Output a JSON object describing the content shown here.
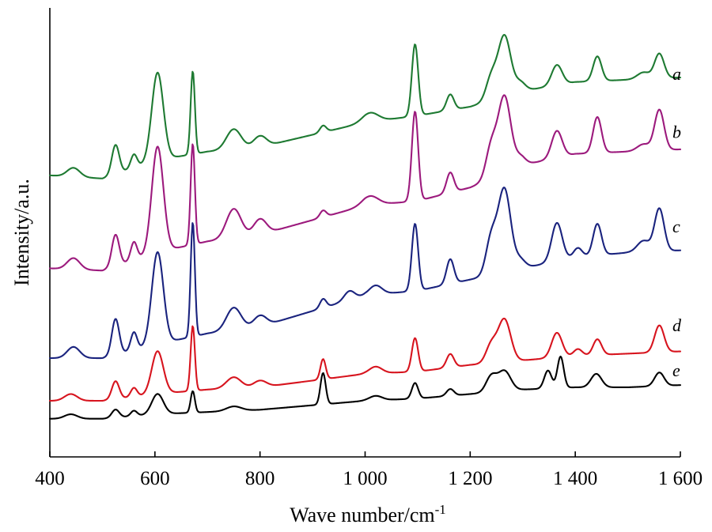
{
  "chart_data": {
    "type": "line",
    "title": "",
    "xlabel": "Wave number/cm",
    "xlabel_sup": "-1",
    "ylabel": "Intensity/a.u.",
    "xlim": [
      400,
      1600
    ],
    "ylim": [
      0,
      100
    ],
    "x_ticks": [
      400,
      600,
      800,
      1000,
      1200,
      1400,
      1600
    ],
    "x_tick_labels": [
      "400",
      "600",
      "800",
      "1 000",
      "1 200",
      "1 400",
      "1 600"
    ],
    "y_ticks_shown": false,
    "grid": false,
    "legend": "none",
    "series": [
      {
        "name": "a",
        "color": "#1e7a32",
        "baseline": [
          [
            400,
            62.7
          ],
          [
            500,
            62.0
          ],
          [
            600,
            66.0
          ],
          [
            700,
            68.0
          ],
          [
            800,
            69.0
          ],
          [
            1000,
            74.5
          ],
          [
            1100,
            76.0
          ],
          [
            1200,
            78.0
          ],
          [
            1300,
            81.5
          ],
          [
            1400,
            83.5
          ],
          [
            1500,
            84.0
          ],
          [
            1600,
            84.5
          ]
        ],
        "peaks": [
          [
            445,
            2.0,
            12
          ],
          [
            525,
            6.5,
            7
          ],
          [
            560,
            3.0,
            6
          ],
          [
            605,
            19.5,
            11
          ],
          [
            672,
            18.5,
            4
          ],
          [
            750,
            4.5,
            14
          ],
          [
            800,
            2.5,
            12
          ],
          [
            920,
            1.5,
            6
          ],
          [
            1010,
            2.0,
            15
          ],
          [
            1095,
            16.0,
            6
          ],
          [
            1162,
            3.5,
            7
          ],
          [
            1240,
            5.0,
            10
          ],
          [
            1265,
            13.5,
            12
          ],
          [
            1295,
            2.0,
            10
          ],
          [
            1365,
            4.5,
            10
          ],
          [
            1442,
            5.5,
            8
          ],
          [
            1530,
            1.5,
            12
          ],
          [
            1560,
            5.5,
            9
          ]
        ]
      },
      {
        "name": "b",
        "color": "#9c1a7d",
        "baseline": [
          [
            400,
            42.0
          ],
          [
            500,
            41.5
          ],
          [
            600,
            45.5
          ],
          [
            700,
            48.0
          ],
          [
            800,
            49.5
          ],
          [
            1000,
            56.0
          ],
          [
            1100,
            57.0
          ],
          [
            1200,
            60.0
          ],
          [
            1300,
            65.0
          ],
          [
            1400,
            67.5
          ],
          [
            1500,
            68.0
          ],
          [
            1600,
            68.5
          ]
        ],
        "peaks": [
          [
            445,
            2.5,
            12
          ],
          [
            525,
            7.0,
            7
          ],
          [
            560,
            4.0,
            6
          ],
          [
            605,
            23.5,
            11
          ],
          [
            672,
            22.5,
            4
          ],
          [
            750,
            6.5,
            14
          ],
          [
            800,
            3.5,
            12
          ],
          [
            920,
            1.5,
            6
          ],
          [
            1010,
            2.0,
            15
          ],
          [
            1095,
            20.0,
            6
          ],
          [
            1162,
            4.5,
            7
          ],
          [
            1240,
            7.0,
            10
          ],
          [
            1265,
            17.0,
            12
          ],
          [
            1295,
            2.0,
            10
          ],
          [
            1365,
            6.0,
            10
          ],
          [
            1442,
            8.0,
            8
          ],
          [
            1530,
            1.5,
            12
          ],
          [
            1560,
            9.0,
            9
          ]
        ]
      },
      {
        "name": "c",
        "color": "#1a237e",
        "baseline": [
          [
            400,
            22.0
          ],
          [
            500,
            22.0
          ],
          [
            600,
            25.0
          ],
          [
            700,
            27.5
          ],
          [
            800,
            29.0
          ],
          [
            1000,
            36.0
          ],
          [
            1100,
            37.0
          ],
          [
            1200,
            39.5
          ],
          [
            1300,
            42.0
          ],
          [
            1400,
            44.5
          ],
          [
            1500,
            45.5
          ],
          [
            1600,
            46.0
          ]
        ],
        "peaks": [
          [
            445,
            2.5,
            12
          ],
          [
            525,
            8.0,
            7
          ],
          [
            560,
            4.0,
            6
          ],
          [
            605,
            20.5,
            11
          ],
          [
            672,
            25.5,
            4
          ],
          [
            750,
            5.0,
            14
          ],
          [
            800,
            2.5,
            12
          ],
          [
            920,
            2.0,
            6
          ],
          [
            970,
            2.0,
            10
          ],
          [
            1020,
            2.0,
            12
          ],
          [
            1095,
            15.0,
            6
          ],
          [
            1162,
            5.5,
            7
          ],
          [
            1240,
            8.0,
            10
          ],
          [
            1265,
            18.5,
            12
          ],
          [
            1295,
            2.0,
            10
          ],
          [
            1365,
            8.5,
            10
          ],
          [
            1405,
            2.0,
            8
          ],
          [
            1442,
            7.0,
            8
          ],
          [
            1530,
            2.5,
            12
          ],
          [
            1560,
            9.5,
            9
          ]
        ]
      },
      {
        "name": "d",
        "color": "#d7141e",
        "baseline": [
          [
            400,
            12.5
          ],
          [
            500,
            12.5
          ],
          [
            600,
            14.0
          ],
          [
            700,
            15.0
          ],
          [
            800,
            15.5
          ],
          [
            1000,
            18.5
          ],
          [
            1100,
            19.0
          ],
          [
            1200,
            20.5
          ],
          [
            1300,
            21.5
          ],
          [
            1400,
            22.5
          ],
          [
            1500,
            23.0
          ],
          [
            1600,
            23.5
          ]
        ],
        "peaks": [
          [
            440,
            1.5,
            12
          ],
          [
            525,
            4.0,
            7
          ],
          [
            560,
            2.0,
            6
          ],
          [
            605,
            9.5,
            11
          ],
          [
            672,
            14.5,
            4
          ],
          [
            750,
            2.5,
            14
          ],
          [
            800,
            1.5,
            12
          ],
          [
            920,
            4.5,
            5
          ],
          [
            1020,
            1.5,
            12
          ],
          [
            1095,
            7.5,
            6
          ],
          [
            1162,
            3.0,
            7
          ],
          [
            1240,
            4.0,
            10
          ],
          [
            1265,
            9.5,
            12
          ],
          [
            1365,
            5.5,
            10
          ],
          [
            1405,
            1.5,
            8
          ],
          [
            1442,
            3.5,
            8
          ],
          [
            1560,
            6.0,
            9
          ]
        ]
      },
      {
        "name": "e",
        "color": "#000000",
        "baseline": [
          [
            400,
            8.5
          ],
          [
            500,
            8.5
          ],
          [
            600,
            9.5
          ],
          [
            700,
            10.0
          ],
          [
            800,
            10.5
          ],
          [
            1000,
            12.5
          ],
          [
            1100,
            13.0
          ],
          [
            1200,
            14.0
          ],
          [
            1300,
            15.0
          ],
          [
            1400,
            15.5
          ],
          [
            1500,
            15.5
          ],
          [
            1600,
            16.0
          ]
        ],
        "peaks": [
          [
            440,
            1.0,
            12
          ],
          [
            525,
            1.8,
            7
          ],
          [
            560,
            1.2,
            6
          ],
          [
            605,
            4.5,
            11
          ],
          [
            672,
            4.8,
            4
          ],
          [
            750,
            1.0,
            14
          ],
          [
            920,
            7.0,
            5
          ],
          [
            1020,
            1.0,
            12
          ],
          [
            1095,
            3.5,
            6
          ],
          [
            1162,
            1.5,
            7
          ],
          [
            1240,
            3.5,
            10
          ],
          [
            1265,
            4.5,
            12
          ],
          [
            1348,
            4.0,
            7
          ],
          [
            1372,
            7.0,
            6
          ],
          [
            1440,
            3.0,
            10
          ],
          [
            1560,
            3.0,
            9
          ]
        ]
      }
    ],
    "series_label_positions": [
      {
        "name": "a",
        "x": 1585,
        "y": 84
      },
      {
        "name": "b",
        "x": 1585,
        "y": 71
      },
      {
        "name": "c",
        "x": 1585,
        "y": 50
      },
      {
        "name": "d",
        "x": 1585,
        "y": 28
      },
      {
        "name": "e",
        "x": 1585,
        "y": 18
      }
    ]
  }
}
